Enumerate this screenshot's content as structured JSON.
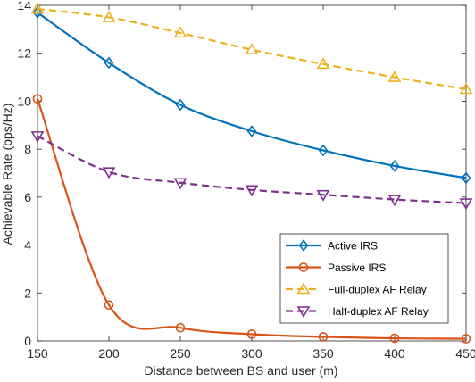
{
  "chart_data": {
    "type": "line",
    "xlabel": "Distance between BS and user (m)",
    "ylabel": "Achievable Rate (bps/Hz)",
    "xlim": [
      150,
      450
    ],
    "ylim": [
      0,
      14
    ],
    "xticks": [
      150,
      200,
      250,
      300,
      350,
      400,
      450
    ],
    "yticks": [
      0,
      2,
      4,
      6,
      8,
      10,
      12,
      14
    ],
    "grid": false,
    "legend_position": "bottom-right",
    "x": [
      150,
      200,
      250,
      300,
      350,
      400,
      450
    ],
    "series": [
      {
        "name": "Active IRS",
        "marker": "diamond",
        "line_style": "solid",
        "color": "#0072BD",
        "values": [
          13.7,
          11.6,
          9.85,
          8.75,
          7.95,
          7.3,
          6.8
        ]
      },
      {
        "name": "Passive IRS",
        "marker": "circle",
        "line_style": "solid",
        "color": "#D95319",
        "values": [
          10.1,
          1.5,
          0.55,
          0.28,
          0.17,
          0.11,
          0.09
        ]
      },
      {
        "name": "Full-duplex AF Relay",
        "marker": "triangle-up",
        "line_style": "dashed",
        "color": "#EDB120",
        "values": [
          13.85,
          13.5,
          12.85,
          12.15,
          11.55,
          11.0,
          10.5
        ]
      },
      {
        "name": "Half-duplex AF Relay",
        "marker": "triangle-down",
        "line_style": "dashed",
        "color": "#7E2F8E",
        "values": [
          8.55,
          7.05,
          6.6,
          6.3,
          6.1,
          5.9,
          5.75
        ]
      }
    ]
  }
}
